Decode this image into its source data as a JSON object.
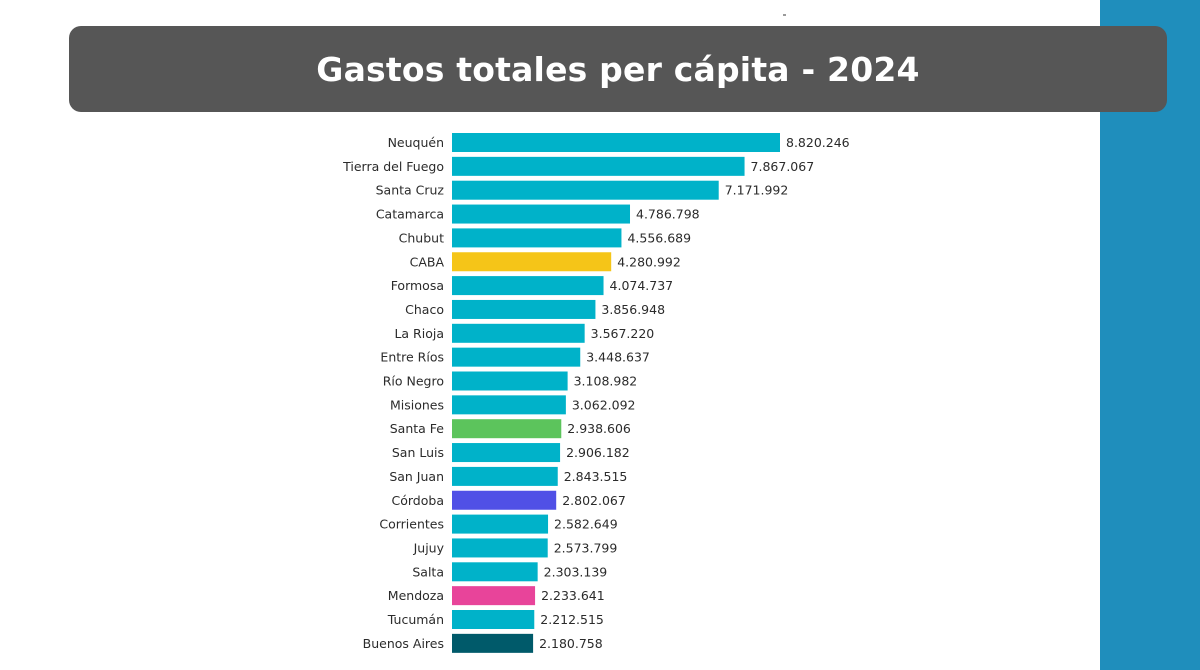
{
  "page": {
    "title": "Gastos totales per cápita - 2024",
    "colors": {
      "title_banner": "#565656",
      "side_stripe": "#1f8ebc",
      "bar_default": "#00b2c9"
    }
  },
  "chart_data": {
    "type": "bar",
    "orientation": "horizontal",
    "title": "Gastos totales per cápita - 2024",
    "xlabel": "",
    "ylabel": "",
    "xlim": [
      0,
      8820246
    ],
    "grid": false,
    "categories": [
      "Neuquén",
      "Tierra del Fuego",
      "Santa Cruz",
      "Catamarca",
      "Chubut",
      "CABA",
      "Formosa",
      "Chaco",
      "La Rioja",
      "Entre Ríos",
      "Río Negro",
      "Misiones",
      "Santa Fe",
      "San Luis",
      "San Juan",
      "Córdoba",
      "Corrientes",
      "Jujuy",
      "Salta",
      "Mendoza",
      "Tucumán",
      "Buenos Aires"
    ],
    "values": [
      8820246,
      7867067,
      7171992,
      4786798,
      4556689,
      4280992,
      4074737,
      3856948,
      3567220,
      3448637,
      3108982,
      3062092,
      2938606,
      2906182,
      2843515,
      2802067,
      2582649,
      2573799,
      2303139,
      2233641,
      2212515,
      2180758
    ],
    "value_labels": [
      "8.820.246",
      "7.867.067",
      "7.171.992",
      "4.786.798",
      "4.556.689",
      "4.280.992",
      "4.074.737",
      "3.856.948",
      "3.567.220",
      "3.448.637",
      "3.108.982",
      "3.062.092",
      "2.938.606",
      "2.906.182",
      "2.843.515",
      "2.802.067",
      "2.582.649",
      "2.573.799",
      "2.303.139",
      "2.233.641",
      "2.212.515",
      "2.180.758"
    ],
    "colors": [
      "#00b2c9",
      "#00b2c9",
      "#00b2c9",
      "#00b2c9",
      "#00b2c9",
      "#f5c518",
      "#00b2c9",
      "#00b2c9",
      "#00b2c9",
      "#00b2c9",
      "#00b2c9",
      "#00b2c9",
      "#5cc45c",
      "#00b2c9",
      "#00b2c9",
      "#5050e6",
      "#00b2c9",
      "#00b2c9",
      "#00b2c9",
      "#e8449a",
      "#00b2c9",
      "#005a6a"
    ]
  }
}
